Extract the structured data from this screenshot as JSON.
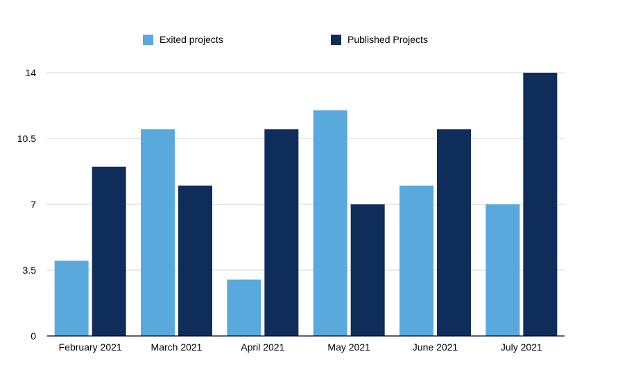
{
  "chart_data": {
    "type": "bar",
    "title": "",
    "xlabel": "",
    "ylabel": "",
    "categories": [
      "February 2021",
      "March 2021",
      "April 2021",
      "May 2021",
      "June 2021",
      "July 2021"
    ],
    "series": [
      {
        "name": "Exited projects",
        "values": [
          4,
          11,
          3,
          12,
          8,
          7
        ],
        "color": "#5aa9dd"
      },
      {
        "name": "Published Projects",
        "values": [
          9,
          8,
          11,
          7,
          11,
          14
        ],
        "color": "#0f2d5a"
      }
    ],
    "ylim": [
      0,
      14
    ],
    "yticks": [
      "0",
      "3.5",
      "7",
      "10.5",
      "14"
    ],
    "grid": true,
    "legend_position": "top"
  }
}
